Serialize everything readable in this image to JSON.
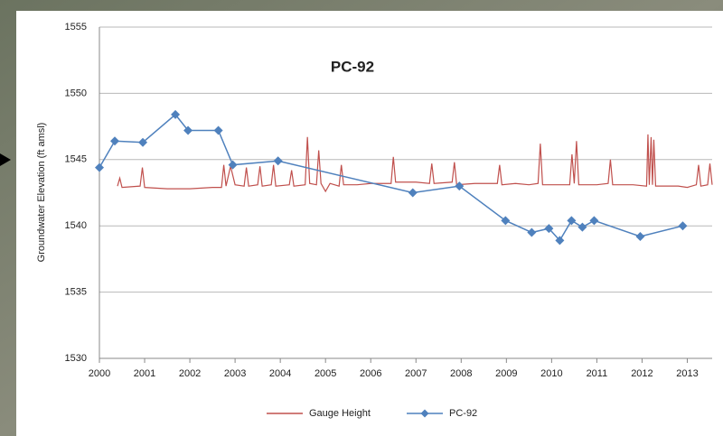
{
  "chart_data": {
    "type": "line",
    "title": "PC-92",
    "y_label": "Groundwater Elevation (ft amsl)",
    "xlim": [
      2000,
      2013.55
    ],
    "xticks": [
      2000,
      2001,
      2002,
      2003,
      2004,
      2005,
      2006,
      2007,
      2008,
      2009,
      2010,
      2011,
      2012,
      2013
    ],
    "ylim": [
      1530,
      1555
    ],
    "yticks": [
      1530,
      1535,
      1540,
      1545,
      1550,
      1555
    ],
    "grid": true,
    "legend": "bottom",
    "series": [
      {
        "name": "Gauge Height",
        "color": "#c0504d",
        "marker": "none",
        "x": [
          2000.4,
          2000.45,
          2000.5,
          2000.9,
          2000.95,
          2001.0,
          2001.5,
          2002.0,
          2002.5,
          2002.7,
          2002.75,
          2002.8,
          2002.9,
          2003.0,
          2003.2,
          2003.25,
          2003.3,
          2003.5,
          2003.55,
          2003.6,
          2003.8,
          2003.85,
          2003.9,
          2004.2,
          2004.25,
          2004.3,
          2004.55,
          2004.6,
          2004.65,
          2004.8,
          2004.85,
          2004.9,
          2005.0,
          2005.1,
          2005.3,
          2005.35,
          2005.4,
          2005.7,
          2006.0,
          2006.45,
          2006.5,
          2006.55,
          2007.0,
          2007.3,
          2007.35,
          2007.4,
          2007.8,
          2007.85,
          2007.9,
          2008.3,
          2008.8,
          2008.85,
          2008.9,
          2009.2,
          2009.5,
          2009.7,
          2009.75,
          2009.8,
          2010.1,
          2010.4,
          2010.45,
          2010.5,
          2010.55,
          2010.6,
          2011.0,
          2011.25,
          2011.3,
          2011.35,
          2011.8,
          2012.1,
          2012.13,
          2012.16,
          2012.2,
          2012.23,
          2012.26,
          2012.3,
          2012.8,
          2013.0,
          2013.2,
          2013.25,
          2013.3,
          2013.45,
          2013.5,
          2013.55
        ],
        "values": [
          1543.0,
          1543.6,
          1542.9,
          1543.0,
          1544.4,
          1542.9,
          1542.8,
          1542.8,
          1542.9,
          1542.9,
          1544.6,
          1543.0,
          1544.5,
          1543.1,
          1543.0,
          1544.4,
          1543.0,
          1543.1,
          1544.5,
          1543.0,
          1543.1,
          1544.6,
          1543.0,
          1543.1,
          1544.2,
          1543.0,
          1543.1,
          1546.7,
          1543.2,
          1543.1,
          1545.7,
          1543.2,
          1542.6,
          1543.2,
          1543.0,
          1544.6,
          1543.1,
          1543.1,
          1543.2,
          1543.2,
          1545.2,
          1543.3,
          1543.3,
          1543.2,
          1544.7,
          1543.2,
          1543.3,
          1544.8,
          1543.1,
          1543.2,
          1543.2,
          1544.6,
          1543.1,
          1543.2,
          1543.1,
          1543.2,
          1546.2,
          1543.1,
          1543.1,
          1543.1,
          1545.4,
          1543.2,
          1546.4,
          1543.1,
          1543.1,
          1543.2,
          1545.0,
          1543.1,
          1543.1,
          1543.0,
          1546.9,
          1543.1,
          1546.7,
          1543.1,
          1546.5,
          1543.0,
          1543.0,
          1542.9,
          1543.1,
          1544.6,
          1543.0,
          1543.1,
          1544.7,
          1543.1
        ]
      },
      {
        "name": "PC-92",
        "color": "#4f81bd",
        "marker": "diamond",
        "x": [
          2000.0,
          2000.34,
          2000.96,
          2001.68,
          2001.96,
          2002.63,
          2002.95,
          2003.95,
          2006.93,
          2007.96,
          2008.98,
          2009.56,
          2009.94,
          2010.18,
          2010.44,
          2010.68,
          2010.94,
          2011.96,
          2012.9
        ],
        "values": [
          1544.4,
          1546.4,
          1546.3,
          1548.4,
          1547.2,
          1547.2,
          1544.6,
          1544.9,
          1542.5,
          1543.0,
          1540.4,
          1539.5,
          1539.8,
          1538.9,
          1540.4,
          1539.9,
          1540.4,
          1539.2,
          1540.0
        ]
      }
    ]
  }
}
